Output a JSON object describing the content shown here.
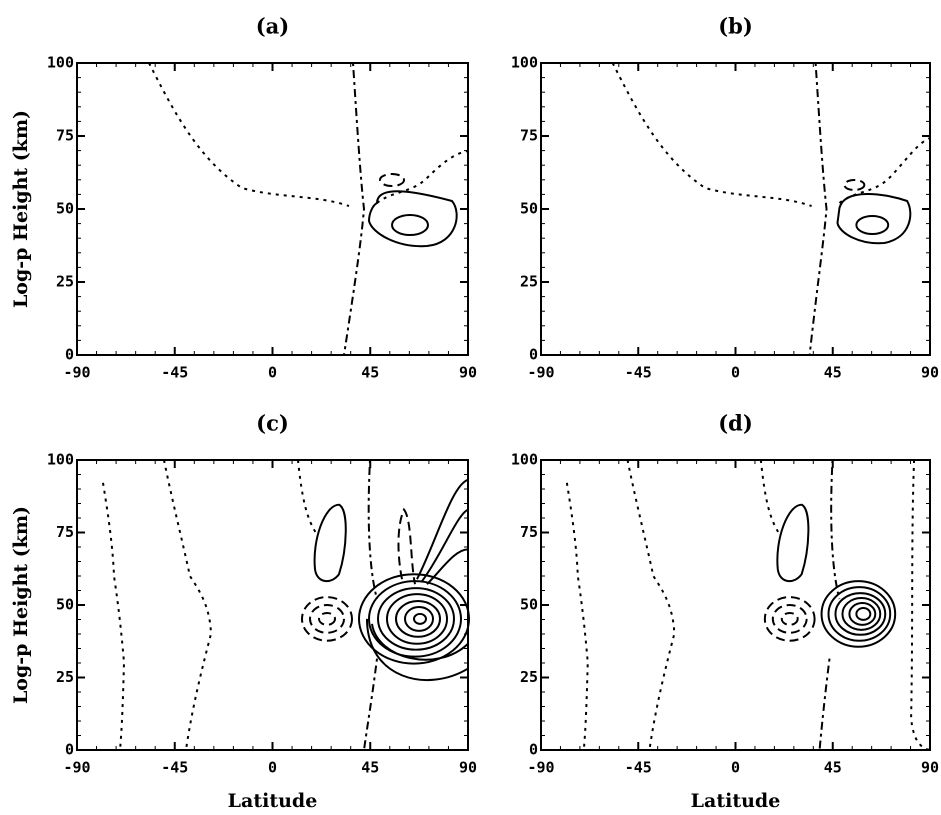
{
  "chart_data": [
    {
      "type": "contour",
      "title": "(a)",
      "ylabel": "Log-p Height (km)",
      "xlim": [
        -90,
        90
      ],
      "ylim": [
        0,
        100
      ],
      "xticks": [
        -90,
        -45,
        0,
        45,
        90
      ],
      "yticks": [
        0,
        25,
        50,
        75,
        100
      ]
    },
    {
      "type": "contour",
      "title": "(b)",
      "xlim": [
        -90,
        90
      ],
      "ylim": [
        0,
        100
      ],
      "xticks": [
        -90,
        -45,
        0,
        45,
        90
      ],
      "yticks": [
        0,
        25,
        50,
        75,
        100
      ]
    },
    {
      "type": "contour",
      "title": "(c)",
      "xlabel": "Latitude",
      "ylabel": "Log-p Height (km)",
      "xlim": [
        -90,
        90
      ],
      "ylim": [
        0,
        100
      ],
      "xticks": [
        -90,
        -45,
        0,
        45,
        90
      ],
      "yticks": [
        0,
        25,
        50,
        75,
        100
      ]
    },
    {
      "type": "contour",
      "title": "(d)",
      "xlabel": "Latitude",
      "xlim": [
        -90,
        90
      ],
      "ylim": [
        0,
        100
      ],
      "xticks": [
        -90,
        -45,
        0,
        45,
        90
      ],
      "yticks": [
        0,
        25,
        50,
        75,
        100
      ]
    }
  ]
}
